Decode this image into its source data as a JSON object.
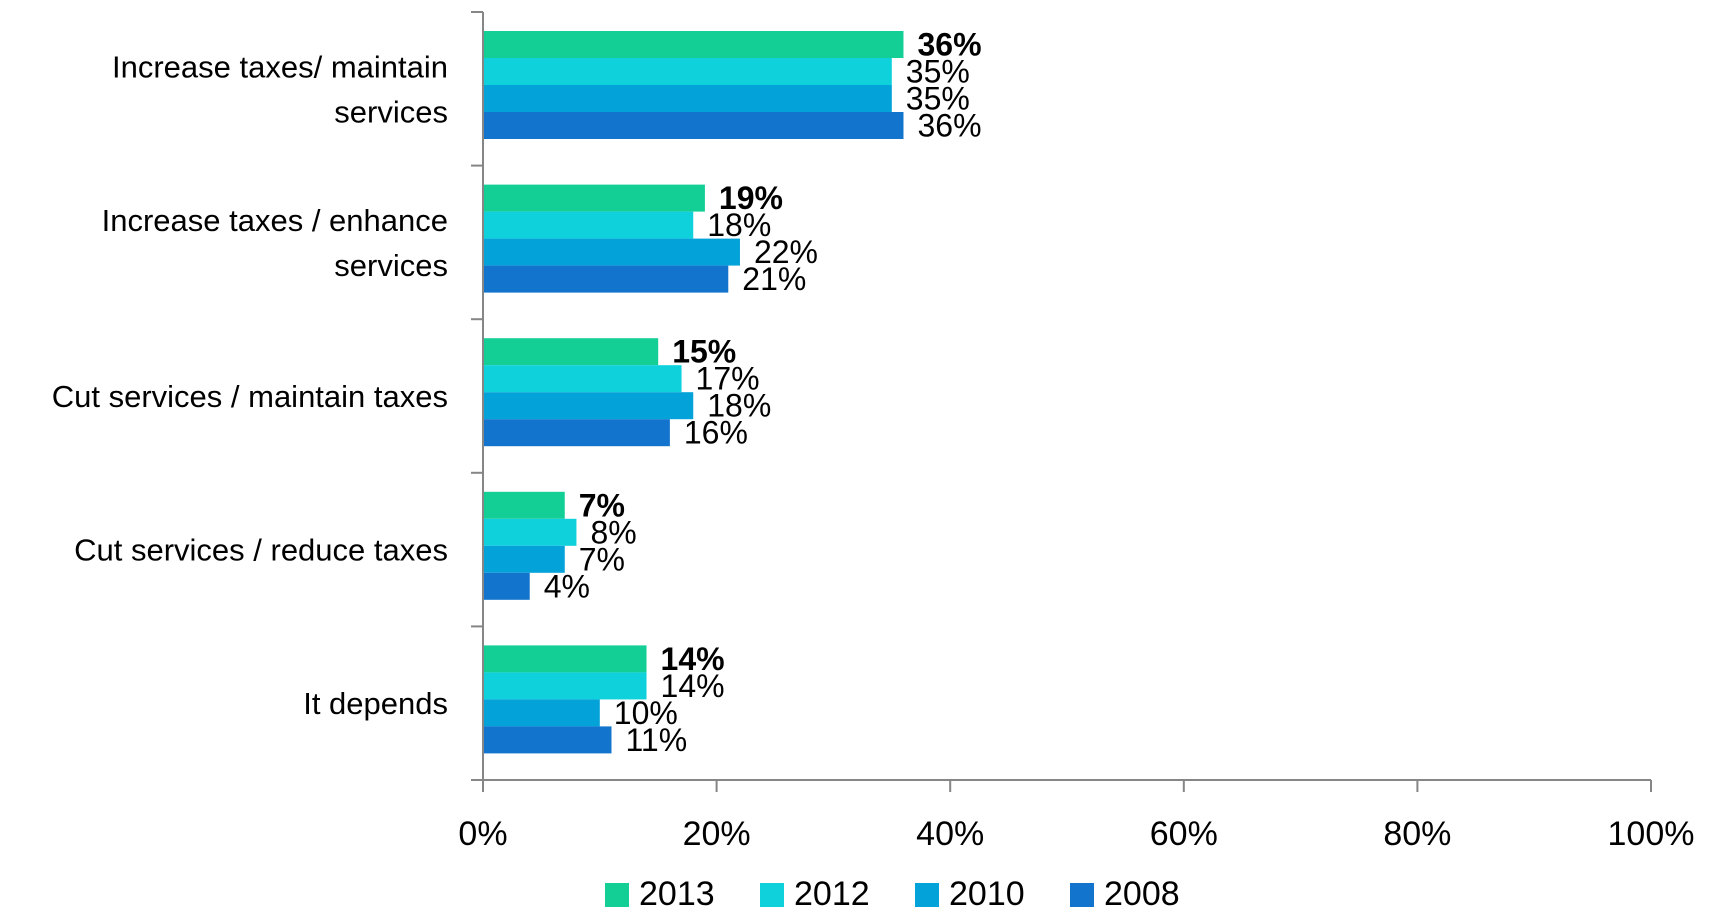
{
  "chart_data": {
    "type": "bar",
    "orientation": "horizontal",
    "categories": [
      [
        "Increase taxes/ maintain",
        "services"
      ],
      [
        "Increase taxes / enhance",
        "services"
      ],
      [
        "Cut services / maintain taxes"
      ],
      [
        "Cut services / reduce taxes"
      ],
      [
        "It depends"
      ]
    ],
    "series": [
      {
        "name": "2013",
        "color": "#13CF96",
        "values": [
          36,
          19,
          15,
          7,
          14
        ],
        "labels": [
          "36%",
          "19%",
          "15%",
          "7%",
          "14%"
        ],
        "bold_labels": true
      },
      {
        "name": "2012",
        "color": "#0ED1DB",
        "values": [
          35,
          18,
          17,
          8,
          14
        ],
        "labels": [
          "35%",
          "18%",
          "17%",
          "8%",
          "14%"
        ],
        "bold_labels": false
      },
      {
        "name": "2010",
        "color": "#03A3DA",
        "values": [
          35,
          22,
          18,
          7,
          10
        ],
        "labels": [
          "35%",
          "22%",
          "18%",
          "7%",
          "10%"
        ],
        "bold_labels": false
      },
      {
        "name": "2008",
        "color": "#1274CC",
        "values": [
          36,
          21,
          16,
          4,
          11
        ],
        "labels": [
          "36%",
          "21%",
          "16%",
          "4%",
          "11%"
        ],
        "bold_labels": false
      }
    ],
    "x_ticks": [
      "0%",
      "20%",
      "40%",
      "60%",
      "80%",
      "100%"
    ],
    "xlim": [
      0,
      100
    ],
    "title": "",
    "xlabel": "",
    "ylabel": "",
    "grid": false,
    "legend_position": "bottom"
  }
}
